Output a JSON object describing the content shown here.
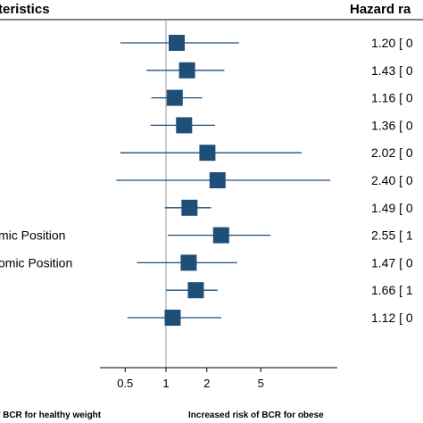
{
  "chart_data": {
    "type": "forest",
    "headers": {
      "characteristics": "teristics",
      "hazard_ratio": "Hazard ra"
    },
    "x_scale": "log",
    "x_ticks": [
      "0.5",
      "1",
      "2",
      "5"
    ],
    "reference_line": 1,
    "footer_left": "f BCR for healthy weight",
    "footer_right": "Increased risk of BCR for obese",
    "colors": {
      "marker": "#1f4e79",
      "line": "#1f4e79",
      "reference": "#999999"
    },
    "rows": [
      {
        "label": "",
        "hr": 1.2,
        "lo": 0.46,
        "hi": 3.45,
        "hr_text": "1.20 [ 0"
      },
      {
        "label": "",
        "hr": 1.43,
        "lo": 0.72,
        "hi": 2.7,
        "hr_text": "1.43 [ 0"
      },
      {
        "label": "",
        "hr": 1.16,
        "lo": 0.78,
        "hi": 1.85,
        "hr_text": "1.16 [ 0"
      },
      {
        "label": "",
        "hr": 1.36,
        "lo": 0.77,
        "hi": 2.3,
        "hr_text": "1.36 [ 0"
      },
      {
        "label": "",
        "hr": 2.02,
        "lo": 0.46,
        "hi": 10.0,
        "hr_text": "2.02 [ 0"
      },
      {
        "label": "",
        "hr": 2.4,
        "lo": 0.43,
        "hi": 16.3,
        "hr_text": "2.40 [ 0"
      },
      {
        "label": "",
        "hr": 1.49,
        "lo": 0.98,
        "hi": 2.15,
        "hr_text": "1.49 [ 0"
      },
      {
        "label": "mic Position",
        "hr": 2.55,
        "lo": 1.03,
        "hi": 5.9,
        "hr_text": "2.55 [ 1"
      },
      {
        "label": "omic Position",
        "hr": 1.47,
        "lo": 0.61,
        "hi": 3.35,
        "hr_text": "1.47 [ 0"
      },
      {
        "label": "",
        "hr": 1.66,
        "lo": 1.0,
        "hi": 2.4,
        "hr_text": "1.66 [ 1"
      },
      {
        "label": "",
        "hr": 1.12,
        "lo": 0.52,
        "hi": 2.55,
        "hr_text": "1.12 [ 0"
      }
    ]
  }
}
